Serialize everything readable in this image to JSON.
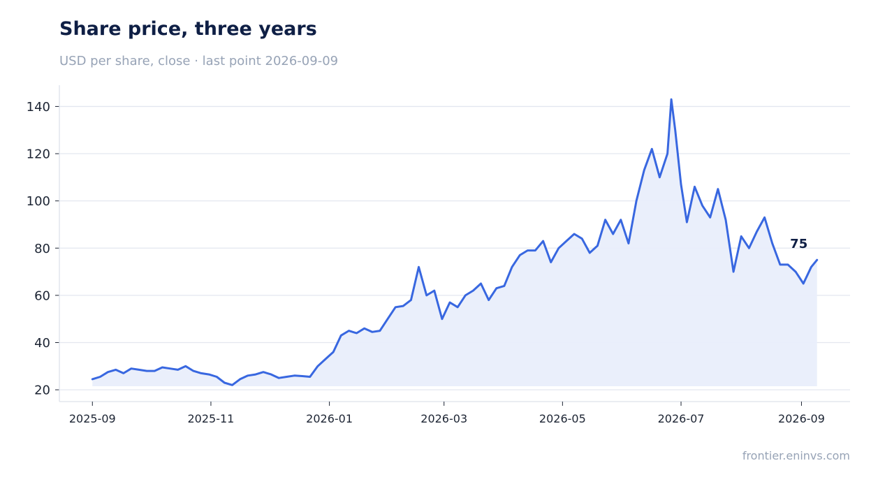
{
  "title": "Share price, three years",
  "subtitle": "USD per share, close · last point 2026-09-09",
  "source": "frontier.eninvs.com",
  "colors": {
    "line": "#3867e0",
    "area": "#e9eefb",
    "grid": "#e3e7ef",
    "axis": "#dde2ea",
    "title": "#0f1f45",
    "muted": "#97a3b6"
  },
  "chart_data": {
    "type": "area",
    "title": "Share price, three years",
    "subtitle": "USD per share, close · last point 2026-09-09",
    "xlabel": "",
    "ylabel": "",
    "ylim": [
      15,
      149
    ],
    "xlim": [
      "2025-08-15",
      "2026-09-26"
    ],
    "y_ticks": [
      20,
      40,
      60,
      80,
      100,
      120,
      140
    ],
    "x_ticks": [
      "2025-09",
      "2025-11",
      "2026-01",
      "2026-03",
      "2026-05",
      "2026-07",
      "2026-09"
    ],
    "grid": "horizontal",
    "legend": "none",
    "end_label": "75",
    "series": [
      {
        "x": [
          "2025-09-01",
          "2025-09-05",
          "2025-09-09",
          "2025-09-13",
          "2025-09-17",
          "2025-09-21",
          "2025-09-25",
          "2025-09-29",
          "2025-10-03",
          "2025-10-07",
          "2025-10-11",
          "2025-10-15",
          "2025-10-19",
          "2025-10-23",
          "2025-10-27",
          "2025-10-31",
          "2025-11-04",
          "2025-11-08",
          "2025-11-12",
          "2025-11-16",
          "2025-11-20",
          "2025-11-24",
          "2025-11-28",
          "2025-12-02",
          "2025-12-06",
          "2025-12-10",
          "2025-12-14",
          "2025-12-18",
          "2025-12-22",
          "2025-12-26",
          "2025-12-30",
          "2026-01-03",
          "2026-01-07",
          "2026-01-11",
          "2026-01-15",
          "2026-01-19",
          "2026-01-23",
          "2026-01-27",
          "2026-01-31",
          "2026-02-04",
          "2026-02-08",
          "2026-02-12",
          "2026-02-16",
          "2026-02-20",
          "2026-02-24",
          "2026-02-28",
          "2026-03-04",
          "2026-03-08",
          "2026-03-12",
          "2026-03-16",
          "2026-03-20",
          "2026-03-24",
          "2026-03-28",
          "2026-04-01",
          "2026-04-05",
          "2026-04-09",
          "2026-04-13",
          "2026-04-17",
          "2026-04-21",
          "2026-04-25",
          "2026-04-29",
          "2026-05-03",
          "2026-05-07",
          "2026-05-11",
          "2026-05-15",
          "2026-05-19",
          "2026-05-23",
          "2026-05-27",
          "2026-05-31",
          "2026-06-04",
          "2026-06-08",
          "2026-06-12",
          "2026-06-16",
          "2026-06-20",
          "2026-06-24",
          "2026-06-26",
          "2026-06-28",
          "2026-07-01",
          "2026-07-04",
          "2026-07-08",
          "2026-07-12",
          "2026-07-16",
          "2026-07-20",
          "2026-07-24",
          "2026-07-28",
          "2026-08-01",
          "2026-08-05",
          "2026-08-09",
          "2026-08-13",
          "2026-08-17",
          "2026-08-21",
          "2026-08-25",
          "2026-08-29",
          "2026-09-02",
          "2026-09-06",
          "2026-09-09"
        ],
        "values": [
          24.5,
          25.5,
          27.5,
          28.5,
          27,
          29,
          28.5,
          28,
          28,
          29.5,
          29,
          28.5,
          30,
          28,
          27,
          26.5,
          25.5,
          23,
          22,
          24.5,
          26,
          26.5,
          27.5,
          26.5,
          25,
          25.5,
          26,
          25.8,
          25.5,
          30,
          33,
          36,
          43,
          45,
          44,
          46,
          44.5,
          45,
          50,
          55,
          55.5,
          58,
          72,
          60,
          62,
          50,
          57,
          55,
          60,
          62,
          65,
          58,
          63,
          64,
          72,
          77,
          79,
          79,
          83,
          74,
          80,
          83,
          86,
          84,
          78,
          81,
          92,
          86,
          92,
          82,
          100,
          113,
          122,
          110,
          120,
          143,
          130,
          107,
          91,
          106,
          98,
          93,
          105,
          92,
          70,
          85,
          80,
          87,
          93,
          82,
          73,
          73,
          70,
          65,
          72,
          75
        ]
      }
    ]
  }
}
